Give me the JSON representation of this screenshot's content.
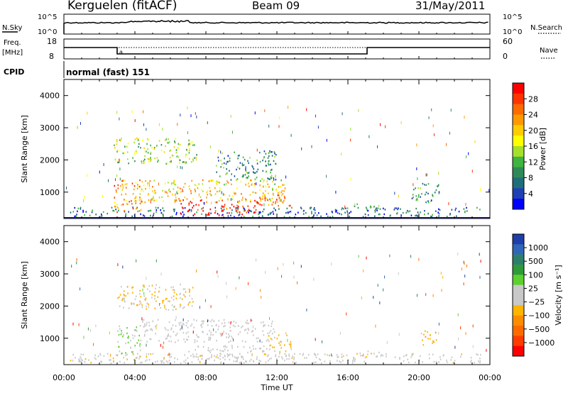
{
  "header": {
    "station": "Kerguelen (fitACF)",
    "beam": "Beam 09",
    "date": "31/May/2011"
  },
  "panels": {
    "nsky": {
      "label": "N.Sky",
      "ticks": [
        "10^5",
        "10^0"
      ],
      "right_label": "N.Search",
      "right_ticks": [
        "10^5",
        "10^0"
      ]
    },
    "freq": {
      "label_line1": "Freq.",
      "label_line2": "[MHz]",
      "ticks": [
        "18",
        "8"
      ],
      "right_label": "Nave",
      "right_ticks": [
        "60",
        "0"
      ]
    },
    "cpid": {
      "label": "CPID",
      "value": "normal (fast) 151"
    }
  },
  "colorbars": {
    "power": {
      "label": "Power [dB]",
      "ticks": [
        "28",
        "24",
        "20",
        "16",
        "12",
        "8",
        "4"
      ],
      "colors": [
        "#ff0000",
        "#ff3300",
        "#ff6a00",
        "#ff9900",
        "#ffcc00",
        "#ffff00",
        "#a6e02c",
        "#3fb43f",
        "#2e8b57",
        "#1d6e7a",
        "#1f3fb4",
        "#0000ff"
      ]
    },
    "velocity": {
      "label": "Velocity [m s⁻¹]",
      "ticks": [
        "1000",
        "500",
        "100",
        "25",
        "−25",
        "−100",
        "−500",
        "−1000"
      ],
      "colors": [
        "#1e3ea8",
        "#2f66b8",
        "#2d7f6b",
        "#2f9a3a",
        "#5cd12e",
        "#c8c8c8",
        "#c8c8c8",
        "#ffb400",
        "#ff8c00",
        "#ff6a00",
        "#ff3c00",
        "#ff0000"
      ]
    }
  },
  "axes": {
    "ylabel": "Slant Range [km]",
    "y_ticks": [
      "4000",
      "3000",
      "2000",
      "1000"
    ],
    "x_ticks": [
      "00:00",
      "04:00",
      "08:00",
      "12:00",
      "16:00",
      "20:00",
      "00:00"
    ],
    "xlabel": "Time UT"
  },
  "chart_data": {
    "type": "heatmap",
    "x_range_hours": [
      0,
      24
    ],
    "y_range_km": [
      180,
      4500
    ],
    "panels": [
      {
        "name": "Power",
        "unit": "dB",
        "scale": [
          0,
          30
        ],
        "regions": [
          {
            "t": [
              0.3,
              23.5
            ],
            "r": [
              250,
              550
            ],
            "v": 6
          },
          {
            "t": [
              2.8,
              7.5
            ],
            "r": [
              1900,
              2700
            ],
            "v": 14
          },
          {
            "t": [
              2.8,
              4.4
            ],
            "r": [
              400,
              1400
            ],
            "v": 22
          },
          {
            "t": [
              6.5,
              11.0
            ],
            "r": [
              300,
              800
            ],
            "v": 28
          },
          {
            "t": [
              4.0,
              12.5
            ],
            "r": [
              700,
              1400
            ],
            "v": 18
          },
          {
            "t": [
              8.5,
              12.0
            ],
            "r": [
              1400,
              2300
            ],
            "v": 8
          },
          {
            "t": [
              11.0,
              12.8
            ],
            "r": [
              600,
              1000
            ],
            "v": 24
          },
          {
            "t": [
              16.2,
              17.8
            ],
            "r": [
              450,
              650
            ],
            "v": 10
          },
          {
            "t": [
              19.5,
              21.2
            ],
            "r": [
              700,
              1300
            ],
            "v": 8
          }
        ]
      },
      {
        "name": "Velocity",
        "unit": "m s-1",
        "scale": [
          -1000,
          1000
        ],
        "regions": [
          {
            "t": [
              0.3,
              23.5
            ],
            "r": [
              250,
              550
            ],
            "v": -60
          },
          {
            "t": [
              3.0,
              7.3
            ],
            "r": [
              1900,
              2700
            ],
            "v": -150
          },
          {
            "t": [
              3.0,
              4.4
            ],
            "r": [
              500,
              1400
            ],
            "v": 120
          },
          {
            "t": [
              4.2,
              12.0
            ],
            "r": [
              900,
              1600
            ],
            "v": 10
          },
          {
            "t": [
              7.0,
              11.5
            ],
            "r": [
              300,
              800
            ],
            "v": -10
          },
          {
            "t": [
              11.5,
              12.8
            ],
            "r": [
              600,
              1200
            ],
            "v": -180
          },
          {
            "t": [
              16.5,
              18.2
            ],
            "r": [
              450,
              650
            ],
            "v": 60
          },
          {
            "t": [
              20.0,
              21.0
            ],
            "r": [
              800,
              1250
            ],
            "v": -300
          }
        ]
      }
    ]
  }
}
